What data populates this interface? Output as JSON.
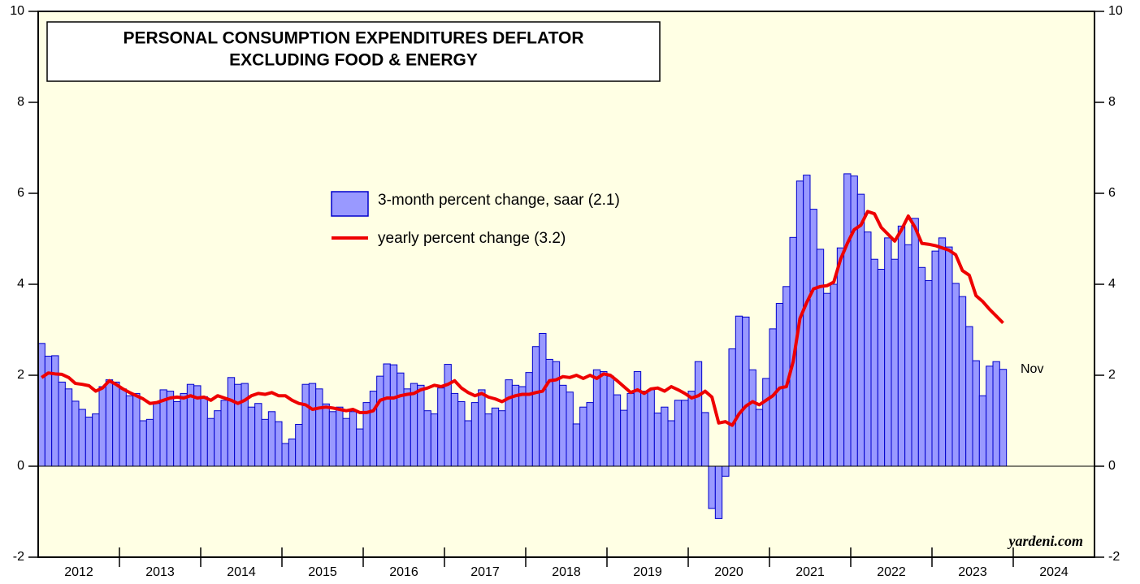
{
  "chart_data": {
    "type": "bar",
    "title_lines": [
      "PERSONAL CONSUMPTION EXPENDITURES DEFLATOR",
      "EXCLUDING FOOD & ENERGY"
    ],
    "x_axis_labels": [
      "2012",
      "2013",
      "2014",
      "2015",
      "2016",
      "2017",
      "2018",
      "2019",
      "2020",
      "2021",
      "2022",
      "2023",
      "2024"
    ],
    "categories": [
      null,
      null,
      null,
      null,
      null,
      null,
      null,
      null,
      null,
      null,
      null,
      null,
      null,
      null,
      null,
      null,
      null,
      null,
      null,
      null,
      null,
      null,
      null,
      null,
      null,
      null,
      null,
      null,
      null,
      null,
      null,
      null,
      null,
      null,
      null,
      null,
      null,
      null,
      null,
      null,
      null,
      null,
      null,
      null,
      null,
      null,
      null,
      null,
      null,
      null,
      null,
      null,
      null,
      null,
      null,
      null,
      null,
      null,
      null,
      null,
      null,
      null,
      null,
      null,
      null,
      null,
      null,
      null,
      null,
      null,
      null,
      null,
      null,
      null,
      null,
      null,
      null,
      null,
      null,
      null,
      null,
      null,
      null,
      null,
      null,
      null,
      null,
      null,
      null,
      null,
      null,
      null,
      null,
      null,
      null,
      null,
      null,
      null,
      null,
      null,
      null,
      null,
      null,
      null,
      null,
      null,
      null,
      null,
      null,
      null,
      null,
      null,
      null,
      null,
      null,
      null,
      null,
      null,
      null,
      null,
      null,
      null,
      null,
      null,
      null,
      null,
      null,
      null,
      null,
      null,
      null,
      null,
      null,
      null,
      null,
      null,
      null,
      null,
      null,
      null,
      null,
      null,
      null
    ],
    "series": [
      {
        "name": "3-month percent change, saar (2.1)",
        "type": "bar",
        "color": "#9999ff",
        "edge_color": "#0000cc",
        "values": [
          2.7,
          2.42,
          2.43,
          1.85,
          1.7,
          1.43,
          1.25,
          1.08,
          1.15,
          1.75,
          1.9,
          1.85,
          1.7,
          1.55,
          1.6,
          1.0,
          1.03,
          1.38,
          1.68,
          1.65,
          1.42,
          1.6,
          1.8,
          1.77,
          1.53,
          1.05,
          1.22,
          1.45,
          1.95,
          1.8,
          1.82,
          1.3,
          1.38,
          1.03,
          1.2,
          0.98,
          0.5,
          0.6,
          0.92,
          1.8,
          1.82,
          1.7,
          1.37,
          1.2,
          1.3,
          1.05,
          1.2,
          0.82,
          1.4,
          1.65,
          1.98,
          2.25,
          2.23,
          2.05,
          1.7,
          1.82,
          1.78,
          1.22,
          1.15,
          1.72,
          2.24,
          1.6,
          1.42,
          1.0,
          1.4,
          1.68,
          1.15,
          1.28,
          1.22,
          1.9,
          1.78,
          1.75,
          2.06,
          2.63,
          2.92,
          2.35,
          2.3,
          1.78,
          1.63,
          0.93,
          1.3,
          1.4,
          2.12,
          2.08,
          1.98,
          1.57,
          1.23,
          1.6,
          2.08,
          1.65,
          1.68,
          1.17,
          1.3,
          1.0,
          1.45,
          1.45,
          1.65,
          2.3,
          1.18,
          -0.93,
          -1.15,
          -0.22,
          2.58,
          3.3,
          3.28,
          2.12,
          1.25,
          1.93,
          3.02,
          3.58,
          3.95,
          5.03,
          6.27,
          6.4,
          5.65,
          4.77,
          3.8,
          4.0,
          4.8,
          6.43,
          6.38,
          5.98,
          5.15,
          4.55,
          4.33,
          5.02,
          4.55,
          5.28,
          4.87,
          5.45,
          4.37,
          4.08,
          4.73,
          5.02,
          4.82,
          4.02,
          3.73,
          3.07,
          2.32,
          1.55,
          2.2,
          2.3,
          2.13
        ]
      },
      {
        "name": "yearly percent change (3.2)",
        "type": "line",
        "color": "#ee0000",
        "values": [
          1.95,
          2.05,
          2.03,
          2.02,
          1.95,
          1.82,
          1.8,
          1.77,
          1.65,
          1.72,
          1.88,
          1.8,
          1.7,
          1.62,
          1.55,
          1.48,
          1.38,
          1.4,
          1.45,
          1.5,
          1.52,
          1.5,
          1.55,
          1.5,
          1.52,
          1.45,
          1.55,
          1.5,
          1.45,
          1.38,
          1.45,
          1.55,
          1.6,
          1.58,
          1.62,
          1.55,
          1.55,
          1.45,
          1.38,
          1.35,
          1.25,
          1.28,
          1.3,
          1.28,
          1.25,
          1.22,
          1.25,
          1.18,
          1.18,
          1.22,
          1.45,
          1.5,
          1.5,
          1.55,
          1.58,
          1.6,
          1.68,
          1.72,
          1.78,
          1.75,
          1.8,
          1.88,
          1.72,
          1.62,
          1.55,
          1.6,
          1.52,
          1.48,
          1.42,
          1.5,
          1.55,
          1.58,
          1.58,
          1.62,
          1.65,
          1.88,
          1.9,
          1.97,
          1.95,
          2.0,
          1.93,
          2.0,
          1.93,
          2.03,
          2.0,
          1.88,
          1.75,
          1.62,
          1.68,
          1.6,
          1.7,
          1.72,
          1.65,
          1.75,
          1.68,
          1.6,
          1.5,
          1.55,
          1.65,
          1.52,
          0.95,
          0.98,
          0.9,
          1.15,
          1.32,
          1.42,
          1.35,
          1.45,
          1.55,
          1.72,
          1.75,
          2.3,
          3.25,
          3.6,
          3.9,
          3.95,
          3.97,
          4.05,
          4.55,
          4.9,
          5.2,
          5.3,
          5.6,
          5.55,
          5.25,
          5.1,
          4.95,
          5.2,
          5.5,
          5.25,
          4.9,
          4.88,
          4.85,
          4.8,
          4.75,
          4.65,
          4.3,
          4.2,
          3.75,
          3.62,
          3.45,
          3.3,
          3.15
        ]
      }
    ],
    "ylim": [
      -2,
      10
    ],
    "yticks": [
      -2,
      0,
      2,
      4,
      6,
      8,
      10
    ],
    "background": "#ffffe4",
    "annotations": [
      "Nov"
    ],
    "credit": "yardeni.com"
  }
}
